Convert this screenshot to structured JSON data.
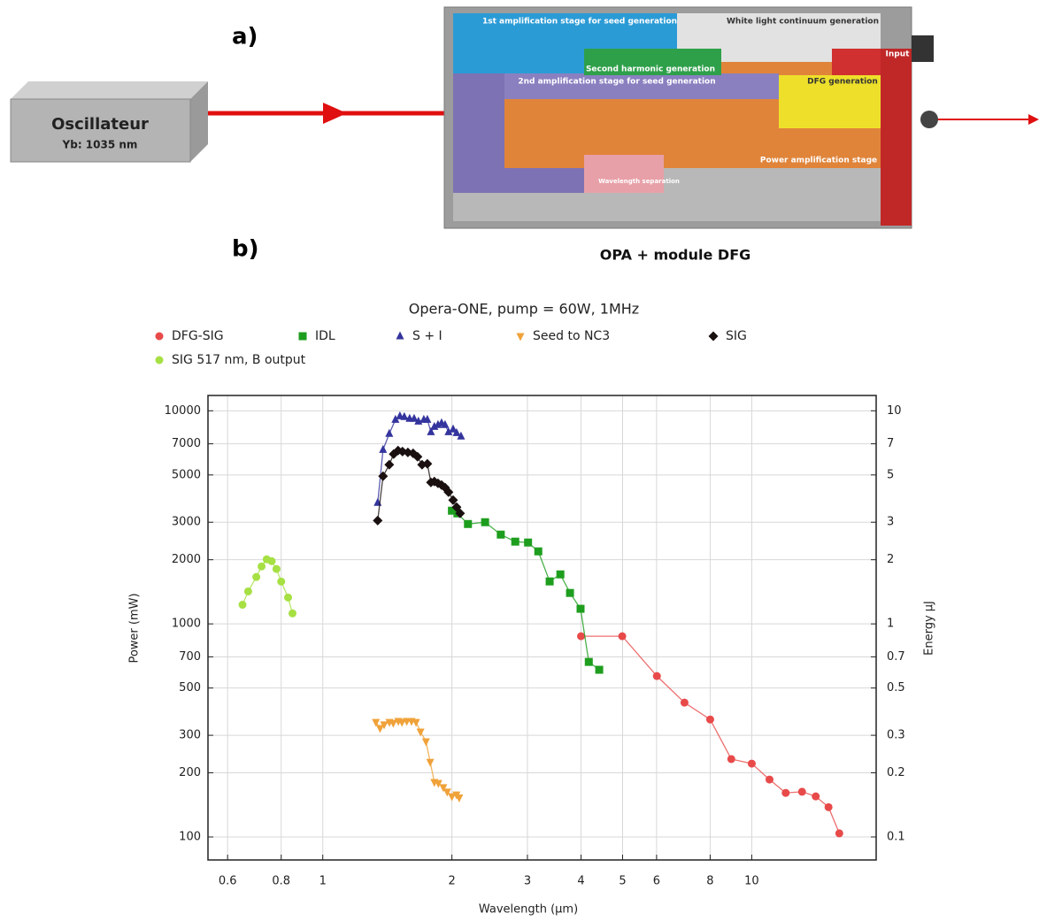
{
  "diagram": {
    "panel_a": "a)",
    "panel_b": "b)",
    "source": {
      "label": "Oscillateur",
      "sublabel": "Yb: 1035 nm"
    },
    "module_label": "OPA + module DFG",
    "stages": [
      "1st amplification stage for seed generation",
      "White light continuum generation",
      "Second harmonic generation",
      "Input",
      "2nd amplification stage for seed generation",
      "DFG generation",
      "Power amplification stage",
      "Wavelength separation"
    ]
  },
  "chart_data": {
    "type": "scatter",
    "title": "Opera-ONE, pump = 60W, 1MHz",
    "x_label": "Wavelength (µm)",
    "y_label": "Power (mW)",
    "y2_label": "Energy µJ",
    "log_x": true,
    "log_y": true,
    "grid": true,
    "xlim": [
      0.54,
      19.5
    ],
    "ylim": [
      78,
      11800
    ],
    "y2lim": [
      0.078,
      11.8
    ],
    "xticks": [
      0.6,
      0.8,
      1,
      2,
      3,
      4,
      5,
      6,
      8,
      10
    ],
    "yticks": [
      100,
      200,
      300,
      500,
      700,
      1000,
      2000,
      3000,
      5000,
      7000,
      10000
    ],
    "y2ticks": [
      0.1,
      0.2,
      0.3,
      0.5,
      0.7,
      1,
      2,
      3,
      5,
      7,
      10
    ],
    "series": [
      {
        "name": "DFG-SIG",
        "color": "#e84a4a",
        "marker": "circle",
        "x": [
          4.0,
          4.99,
          6.01,
          6.97,
          8.0,
          8.96,
          10,
          11.0,
          12.0,
          13.1,
          14.1,
          15.1,
          16.0
        ],
        "values": [
          875,
          875,
          569,
          427,
          356,
          232,
          221,
          186,
          161,
          163,
          155,
          138,
          104
        ]
      },
      {
        "name": "IDL",
        "color": "#1e9e1e",
        "marker": "square",
        "x": [
          2.0,
          2.06,
          2.18,
          2.39,
          2.6,
          2.81,
          3.01,
          3.18,
          3.38,
          3.58,
          3.77,
          3.99,
          4.17,
          4.41
        ],
        "values": [
          3398,
          3300,
          2942,
          3000,
          2624,
          2432,
          2409,
          2189,
          1582,
          1707,
          1397,
          1177,
          663,
          609
        ]
      },
      {
        "name": "S + I",
        "color": "#34349e",
        "marker": "triangle-up",
        "x": [
          1.343,
          1.382,
          1.429,
          1.477,
          1.513,
          1.549,
          1.594,
          1.633,
          1.671,
          1.72,
          1.753,
          1.787,
          1.82,
          1.856,
          1.892,
          1.928,
          1.964,
          2.013,
          2.051,
          2.1
        ],
        "values": [
          3701,
          6566,
          7801,
          9084,
          9441,
          9353,
          9180,
          9180,
          8913,
          9084,
          9084,
          7946,
          8414,
          8590,
          8750,
          8590,
          7946,
          8185,
          7870,
          7585
        ]
      },
      {
        "name": "Seed to NC3",
        "color": "#f0a23a",
        "marker": "triangle-down",
        "x": [
          1.33,
          1.36,
          1.39,
          1.43,
          1.46,
          1.5,
          1.53,
          1.57,
          1.61,
          1.65,
          1.69,
          1.74,
          1.78,
          1.82,
          1.86,
          1.91,
          1.95,
          2.0,
          2.05,
          2.08
        ],
        "values": [
          346,
          324,
          337,
          346,
          343,
          350,
          346,
          350,
          350,
          346,
          312,
          281,
          225,
          181,
          179,
          171,
          163,
          155,
          158,
          153
        ]
      },
      {
        "name": "SIG",
        "color": "#1a1010",
        "marker": "diamond",
        "x": [
          1.343,
          1.382,
          1.429,
          1.463,
          1.498,
          1.534,
          1.579,
          1.624,
          1.663,
          1.704,
          1.753,
          1.787,
          1.82,
          1.856,
          1.892,
          1.928,
          1.964,
          2.013,
          2.051,
          2.09
        ],
        "values": [
          3056,
          4930,
          5585,
          6266,
          6505,
          6440,
          6377,
          6315,
          6083,
          5585,
          5640,
          4612,
          4656,
          4570,
          4480,
          4360,
          4150,
          3808,
          3530,
          3300
        ]
      },
      {
        "name": "SIG 517 nm, B output",
        "color": "#a6e043",
        "marker": "circle",
        "x": [
          0.65,
          0.67,
          0.7,
          0.72,
          0.74,
          0.76,
          0.78,
          0.8,
          0.83,
          0.85
        ],
        "values": [
          1230,
          1420,
          1660,
          1860,
          2010,
          1970,
          1810,
          1580,
          1330,
          1120
        ]
      }
    ]
  }
}
